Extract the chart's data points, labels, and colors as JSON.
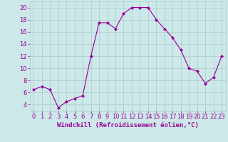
{
  "x": [
    0,
    1,
    2,
    3,
    4,
    5,
    6,
    7,
    8,
    9,
    10,
    11,
    12,
    13,
    14,
    15,
    16,
    17,
    18,
    19,
    20,
    21,
    22,
    23
  ],
  "y": [
    6.5,
    7.0,
    6.5,
    3.5,
    4.5,
    5.0,
    5.5,
    12.0,
    17.5,
    17.5,
    16.5,
    19.0,
    20.0,
    20.0,
    20.0,
    18.0,
    16.5,
    15.0,
    13.0,
    10.0,
    9.5,
    7.5,
    8.5,
    12.0
  ],
  "line_color": "#990099",
  "marker": "D",
  "marker_size": 2,
  "bg_color": "#cce8e8",
  "grid_color": "#aacccc",
  "xlabel": "Windchill (Refroidissement éolien,°C)",
  "xlabel_color": "#990099",
  "xlabel_fontsize": 6.5,
  "tick_color": "#990099",
  "tick_fontsize": 6,
  "xlim": [
    -0.5,
    23.5
  ],
  "ylim": [
    3,
    21
  ],
  "yticks": [
    4,
    6,
    8,
    10,
    12,
    14,
    16,
    18,
    20
  ],
  "xticks": [
    0,
    1,
    2,
    3,
    4,
    5,
    6,
    7,
    8,
    9,
    10,
    11,
    12,
    13,
    14,
    15,
    16,
    17,
    18,
    19,
    20,
    21,
    22,
    23
  ]
}
